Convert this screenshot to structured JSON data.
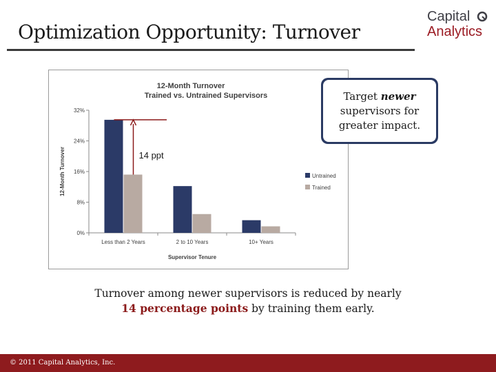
{
  "slide": {
    "title": "Optimization Opportunity: Turnover",
    "logo_line1": "Capital",
    "logo_line2": "Analytics",
    "callout": {
      "pre": "Target ",
      "emphasis": "newer",
      "post": " supervisors for greater impact."
    },
    "summary": {
      "line1": "Turnover among newer supervisors is reduced by nearly",
      "highlight": "14 percentage points",
      "line2_rest": " by training them early."
    },
    "footer": "© 2011 Capital Analytics, Inc."
  },
  "chart_data": {
    "type": "bar",
    "title": "12-Month Turnover",
    "subtitle": "Trained vs. Untrained Supervisors",
    "xlabel": "Supervisor Tenure",
    "ylabel": "12-Month Turnover",
    "categories": [
      "Less than 2 Years",
      "2 to 10 Years",
      "10+ Years"
    ],
    "series": [
      {
        "name": "Untrained",
        "color": "#2b3a67",
        "values": [
          29.5,
          12.2,
          3.3
        ]
      },
      {
        "name": "Trained",
        "color": "#b8aaa2",
        "values": [
          15.2,
          4.9,
          1.7
        ]
      }
    ],
    "ylim": [
      0,
      32
    ],
    "yticks": [
      "0%",
      "8%",
      "16%",
      "24%",
      "32%"
    ],
    "legend": "right",
    "grid": false,
    "annotation": {
      "label": "14 ppt",
      "color": "#8b1a1a"
    }
  }
}
